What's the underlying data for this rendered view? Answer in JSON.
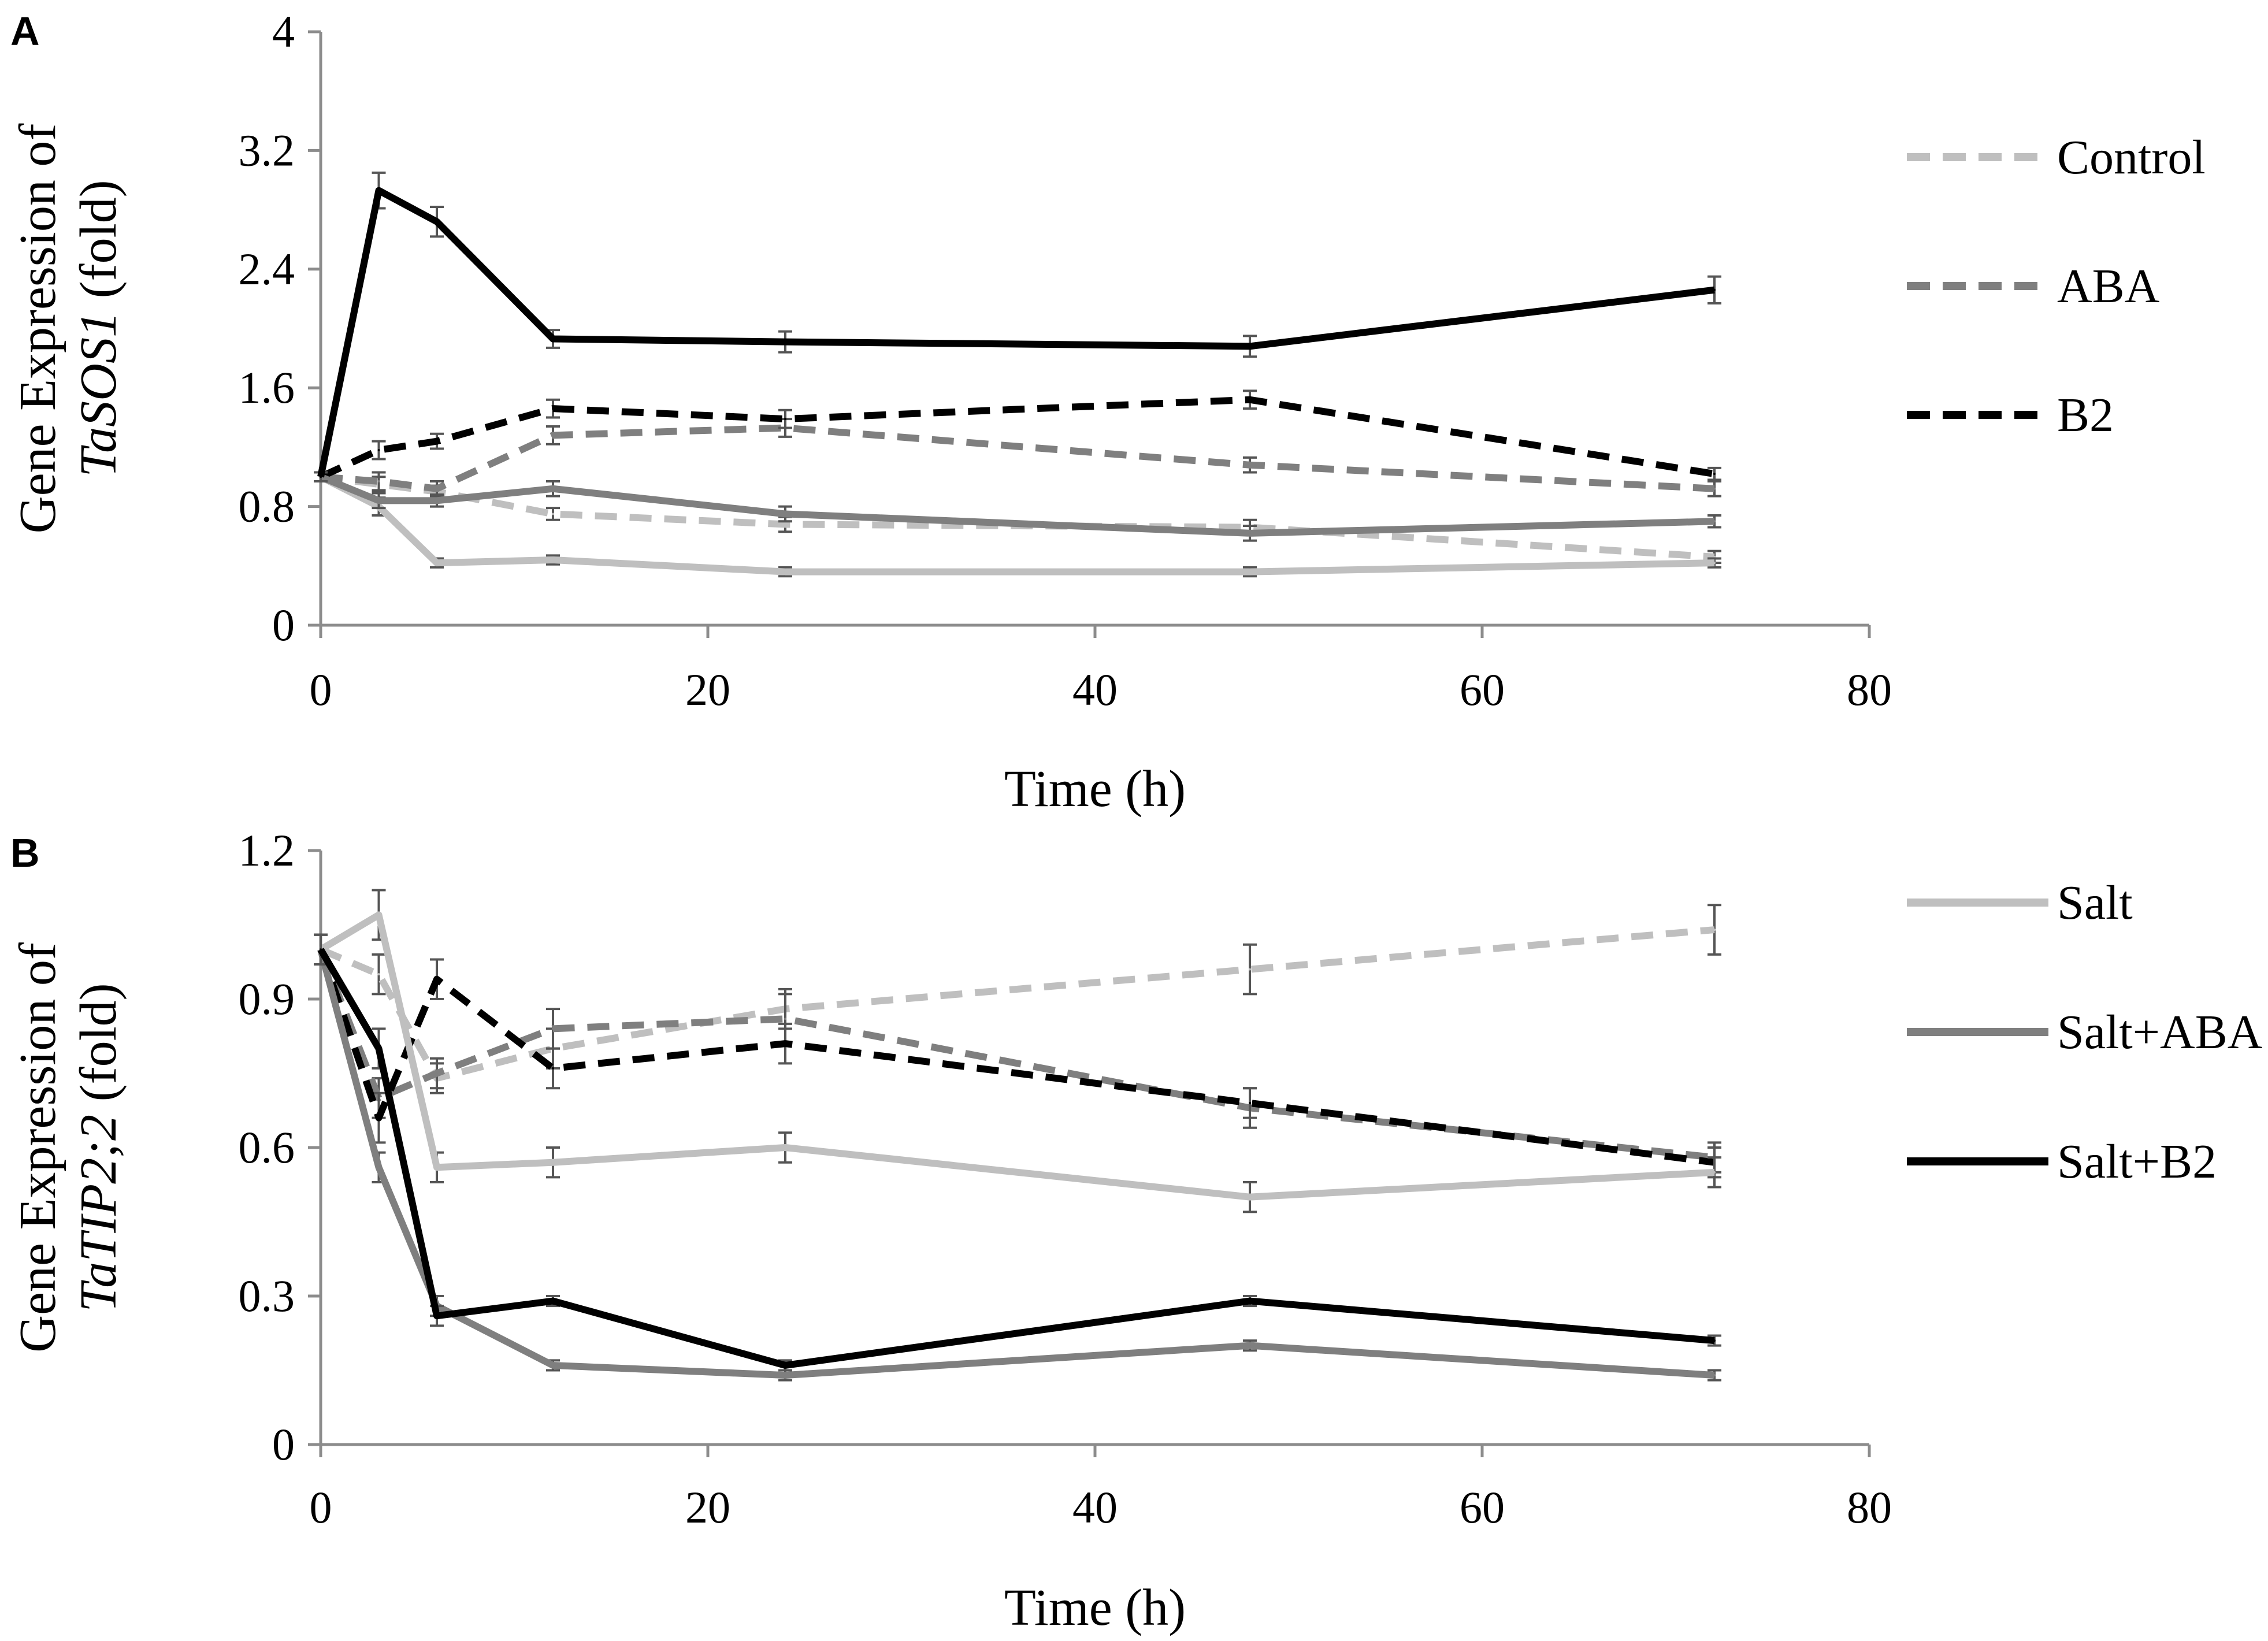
{
  "colors": {
    "light": "#bfbfbf",
    "mid": "#7f7f7f",
    "dark": "#000000",
    "axis": "#8c8c8c",
    "errorbar": "#555555"
  },
  "legend_items": [
    {
      "label": "Control",
      "color": "#bfbfbf",
      "dashed": true
    },
    {
      "label": "ABA",
      "color": "#7f7f7f",
      "dashed": true
    },
    {
      "label": "B2",
      "color": "#000000",
      "dashed": true
    },
    {
      "label": "Salt",
      "color": "#bfbfbf",
      "dashed": false
    },
    {
      "label": "Salt+ABA",
      "color": "#7f7f7f",
      "dashed": false
    },
    {
      "label": "Salt+B2",
      "color": "#000000",
      "dashed": false
    }
  ],
  "chart_data": [
    {
      "type": "line",
      "panel": "A",
      "title": "",
      "xlabel": "Time (h)",
      "ylabel_prefix": "Gene Expression of",
      "ylabel_gene": "TaSOS1",
      "ylabel_suffix": " (fold)",
      "xlim": [
        0,
        80
      ],
      "ylim": [
        0,
        4
      ],
      "xticks": [
        0,
        20,
        40,
        60,
        80
      ],
      "yticks": [
        0,
        0.8,
        1.6,
        2.4,
        3.2,
        4
      ],
      "ytick_labels": [
        "0",
        "0.8",
        "1.6",
        "2.4",
        "3.2",
        "4"
      ],
      "x": [
        0,
        3,
        6,
        12,
        24,
        48,
        72
      ],
      "series": [
        {
          "name": "Control",
          "color": "#bfbfbf",
          "dashed": true,
          "values": [
            1.0,
            0.95,
            0.9,
            0.75,
            0.68,
            0.66,
            0.46
          ],
          "err": [
            0.03,
            0.05,
            0.04,
            0.04,
            0.05,
            0.05,
            0.04
          ]
        },
        {
          "name": "ABA",
          "color": "#7f7f7f",
          "dashed": true,
          "values": [
            1.0,
            0.97,
            0.92,
            1.28,
            1.33,
            1.08,
            0.92
          ],
          "err": [
            0.03,
            0.06,
            0.05,
            0.06,
            0.06,
            0.05,
            0.05
          ]
        },
        {
          "name": "B2",
          "color": "#000000",
          "dashed": true,
          "values": [
            1.0,
            1.18,
            1.24,
            1.46,
            1.39,
            1.52,
            1.02
          ],
          "err": [
            0.03,
            0.06,
            0.05,
            0.06,
            0.06,
            0.06,
            0.04
          ]
        },
        {
          "name": "Salt",
          "color": "#bfbfbf",
          "dashed": false,
          "values": [
            1.0,
            0.8,
            0.42,
            0.44,
            0.36,
            0.36,
            0.42
          ],
          "err": [
            0.03,
            0.06,
            0.03,
            0.03,
            0.03,
            0.03,
            0.03
          ]
        },
        {
          "name": "Salt+ABA",
          "color": "#7f7f7f",
          "dashed": false,
          "values": [
            1.0,
            0.84,
            0.84,
            0.92,
            0.75,
            0.62,
            0.7
          ],
          "err": [
            0.03,
            0.05,
            0.04,
            0.05,
            0.05,
            0.05,
            0.04
          ]
        },
        {
          "name": "Salt+B2",
          "color": "#000000",
          "dashed": false,
          "values": [
            1.0,
            2.93,
            2.72,
            1.93,
            1.91,
            1.88,
            2.26
          ],
          "err": [
            0.03,
            0.12,
            0.1,
            0.06,
            0.07,
            0.07,
            0.09
          ]
        }
      ]
    },
    {
      "type": "line",
      "panel": "B",
      "title": "",
      "xlabel": "Time (h)",
      "ylabel_prefix": "Gene Expression of",
      "ylabel_gene": "TaTIP2;2",
      "ylabel_suffix": " (fold)",
      "xlim": [
        0,
        80
      ],
      "ylim": [
        0,
        1.2
      ],
      "xticks": [
        0,
        20,
        40,
        60,
        80
      ],
      "yticks": [
        0,
        0.3,
        0.6,
        0.9,
        1.2
      ],
      "ytick_labels": [
        "0",
        "0.3",
        "0.6",
        "0.9",
        "1.2"
      ],
      "x": [
        0,
        3,
        6,
        12,
        24,
        48,
        72
      ],
      "series": [
        {
          "name": "Control",
          "color": "#bfbfbf",
          "dashed": true,
          "values": [
            1.0,
            0.95,
            0.74,
            0.8,
            0.88,
            0.96,
            1.04
          ],
          "err": [
            0.03,
            0.04,
            0.03,
            0.04,
            0.04,
            0.05,
            0.05
          ]
        },
        {
          "name": "ABA",
          "color": "#7f7f7f",
          "dashed": true,
          "values": [
            1.0,
            0.7,
            0.75,
            0.84,
            0.86,
            0.68,
            0.58
          ],
          "err": [
            0.03,
            0.04,
            0.03,
            0.04,
            0.05,
            0.04,
            0.03
          ]
        },
        {
          "name": "B2",
          "color": "#000000",
          "dashed": true,
          "values": [
            1.0,
            0.66,
            0.94,
            0.76,
            0.81,
            0.69,
            0.57
          ],
          "err": [
            0.03,
            0.05,
            0.04,
            0.04,
            0.04,
            0.03,
            0.03
          ]
        },
        {
          "name": "Salt",
          "color": "#bfbfbf",
          "dashed": false,
          "values": [
            1.0,
            1.07,
            0.56,
            0.57,
            0.6,
            0.5,
            0.55
          ],
          "err": [
            0.03,
            0.05,
            0.03,
            0.03,
            0.03,
            0.03,
            0.03
          ]
        },
        {
          "name": "Salt+ABA",
          "color": "#7f7f7f",
          "dashed": false,
          "values": [
            1.0,
            0.56,
            0.28,
            0.16,
            0.14,
            0.2,
            0.14
          ],
          "err": [
            0.03,
            0.03,
            0.02,
            0.01,
            0.01,
            0.01,
            0.01
          ]
        },
        {
          "name": "Salt+B2",
          "color": "#000000",
          "dashed": false,
          "values": [
            1.0,
            0.8,
            0.26,
            0.29,
            0.16,
            0.29,
            0.21
          ],
          "err": [
            0.03,
            0.04,
            0.02,
            0.01,
            0.01,
            0.01,
            0.01
          ]
        }
      ]
    }
  ]
}
